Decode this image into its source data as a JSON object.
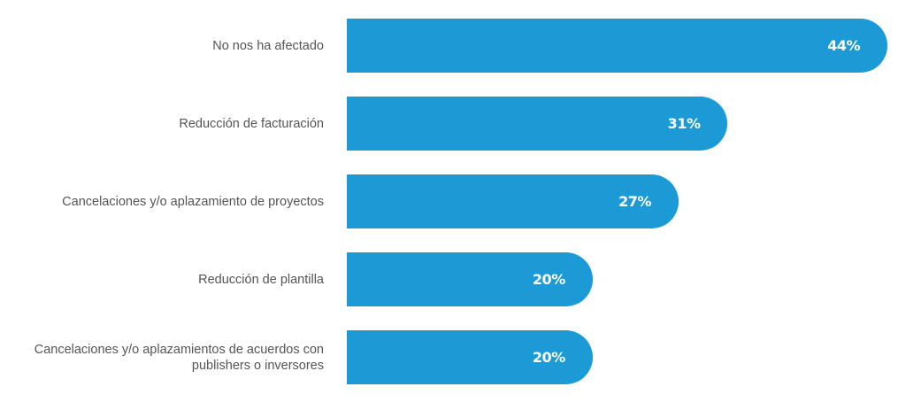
{
  "chart_data": {
    "type": "bar",
    "orientation": "horizontal",
    "categories": [
      "No nos ha afectado",
      "Reducción de facturación",
      "Cancelaciones y/o aplazamiento de proyectos",
      "Reducción de plantilla",
      "Cancelaciones y/o aplazamientos de acuerdos con publishers o inversores"
    ],
    "values": [
      44,
      31,
      27,
      20,
      20
    ],
    "value_labels": [
      "44%",
      "31%",
      "27%",
      "20%",
      "20%"
    ],
    "unit": "%",
    "xlim": [
      0,
      44
    ],
    "grid": false,
    "color": "#1b9ad6"
  }
}
